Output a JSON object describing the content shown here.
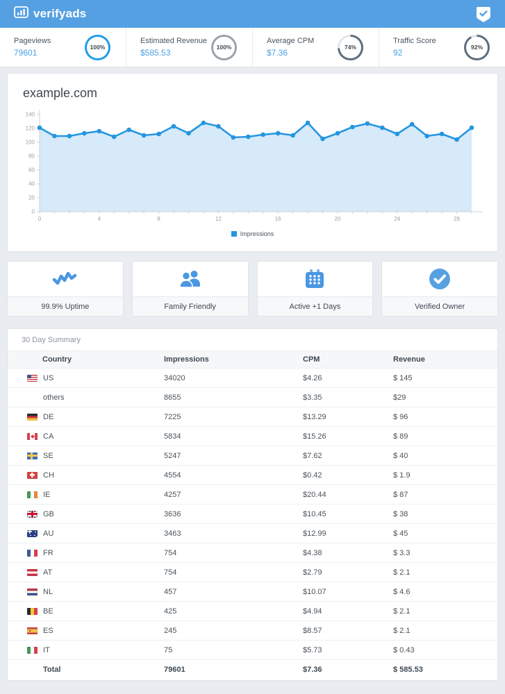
{
  "header": {
    "logo_text": "verifyads",
    "logo_icon": "bar-chart-icon",
    "shield_icon": "verified-shield-icon"
  },
  "stats": [
    {
      "label": "Pageviews",
      "value": "79601",
      "percent_label": "100%",
      "percent": 100,
      "ring_color": "#1f9ce8"
    },
    {
      "label": "Estimated Revenue",
      "value": "$585.53",
      "percent_label": "100%",
      "percent": 100,
      "ring_color": "#98a2ab"
    },
    {
      "label": "Average CPM",
      "value": "$7.36",
      "percent_label": "74%",
      "percent": 74,
      "ring_color": "#5d6d7c"
    },
    {
      "label": "Traffic Score",
      "value": "92",
      "percent_label": "92%",
      "percent": 92,
      "ring_color": "#5d6d7c"
    }
  ],
  "site": {
    "title": "example.com"
  },
  "chart_data": {
    "type": "area",
    "title": "example.com",
    "x": [
      0,
      1,
      2,
      3,
      4,
      5,
      6,
      7,
      8,
      9,
      10,
      11,
      12,
      13,
      14,
      15,
      16,
      17,
      18,
      19,
      20,
      21,
      22,
      23,
      24,
      25,
      26,
      27,
      28,
      29
    ],
    "series": [
      {
        "name": "Impressions",
        "values": [
          121,
          109,
          109,
          113,
          116,
          108,
          118,
          110,
          112,
          123,
          113,
          128,
          123,
          107,
          108,
          111,
          113,
          110,
          128,
          105,
          113,
          122,
          127,
          121,
          112,
          126,
          109,
          112,
          104,
          121
        ]
      }
    ],
    "xticks": [
      0,
      4,
      8,
      12,
      16,
      20,
      24,
      28
    ],
    "yticks": [
      0,
      20,
      40,
      60,
      80,
      100,
      120,
      140
    ],
    "ylim": [
      0,
      140
    ],
    "grid": false,
    "legend_position": "bottom",
    "line_color": "#2496e0",
    "fill_color": "#d6eaf9",
    "axis_color": "#ccd1d6",
    "tick_label_color": "#9aa1a9"
  },
  "legend": {
    "label": "Impressions"
  },
  "features": [
    {
      "icon": "uptime-pulse-icon",
      "label": "99.9% Uptime"
    },
    {
      "icon": "users-icon",
      "label": "Family Friendly"
    },
    {
      "icon": "calendar-icon",
      "label": "Active +1 Days"
    },
    {
      "icon": "verified-check-icon",
      "label": "Verified Owner"
    }
  ],
  "feature_icon_color": "#4a97e2",
  "summary": {
    "title": "30 Day Summary",
    "columns": [
      "Country",
      "Impressions",
      "CPM",
      "Revenue"
    ],
    "rows": [
      {
        "flag": "us",
        "country": "US",
        "impressions": "34020",
        "cpm": "$4.26",
        "revenue": "$ 145"
      },
      {
        "flag": "none",
        "country": "others",
        "impressions": "8655",
        "cpm": "$3.35",
        "revenue": "$29"
      },
      {
        "flag": "de",
        "country": "DE",
        "impressions": "7225",
        "cpm": "$13.29",
        "revenue": "$ 96"
      },
      {
        "flag": "ca",
        "country": "CA",
        "impressions": "5834",
        "cpm": "$15.26",
        "revenue": "$ 89"
      },
      {
        "flag": "se",
        "country": "SE",
        "impressions": "5247",
        "cpm": "$7.62",
        "revenue": "$ 40"
      },
      {
        "flag": "ch",
        "country": "CH",
        "impressions": "4554",
        "cpm": "$0.42",
        "revenue": "$ 1.9"
      },
      {
        "flag": "ie",
        "country": "IE",
        "impressions": "4257",
        "cpm": "$20.44",
        "revenue": "$ 87"
      },
      {
        "flag": "gb",
        "country": "GB",
        "impressions": "3636",
        "cpm": "$10.45",
        "revenue": "$ 38"
      },
      {
        "flag": "au",
        "country": "AU",
        "impressions": "3463",
        "cpm": "$12.99",
        "revenue": "$ 45"
      },
      {
        "flag": "fr",
        "country": "FR",
        "impressions": "754",
        "cpm": "$4.38",
        "revenue": "$ 3.3"
      },
      {
        "flag": "at",
        "country": "AT",
        "impressions": "754",
        "cpm": "$2.79",
        "revenue": "$ 2.1"
      },
      {
        "flag": "nl",
        "country": "NL",
        "impressions": "457",
        "cpm": "$10.07",
        "revenue": "$ 4.6"
      },
      {
        "flag": "be",
        "country": "BE",
        "impressions": "425",
        "cpm": "$4.94",
        "revenue": "$ 2.1"
      },
      {
        "flag": "es",
        "country": "ES",
        "impressions": "245",
        "cpm": "$8.57",
        "revenue": "$ 2.1"
      },
      {
        "flag": "it",
        "country": "IT",
        "impressions": "75",
        "cpm": "$5.73",
        "revenue": "$ 0.43"
      }
    ],
    "total": {
      "label": "Total",
      "impressions": "79601",
      "cpm": "$7.36",
      "revenue": "$ 585.53"
    }
  },
  "colors": {
    "header_bg": "#55a0e2",
    "page_bg": "#e9edf2",
    "accent_blue": "#4aa0e4",
    "ring_track": "#e2e6ea"
  }
}
